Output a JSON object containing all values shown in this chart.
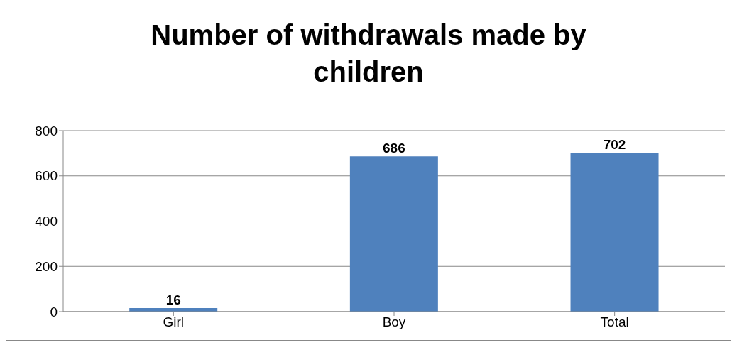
{
  "chart_data": {
    "type": "bar",
    "title": "Number of withdrawals made by children",
    "categories": [
      "Girl",
      "Boy",
      "Total"
    ],
    "values": [
      16,
      686,
      702
    ],
    "color": "#4f81bd",
    "ylim": [
      0,
      800
    ],
    "yticks": [
      0,
      200,
      400,
      600,
      800
    ],
    "grid": "y",
    "data_labels": true,
    "legend": false
  }
}
